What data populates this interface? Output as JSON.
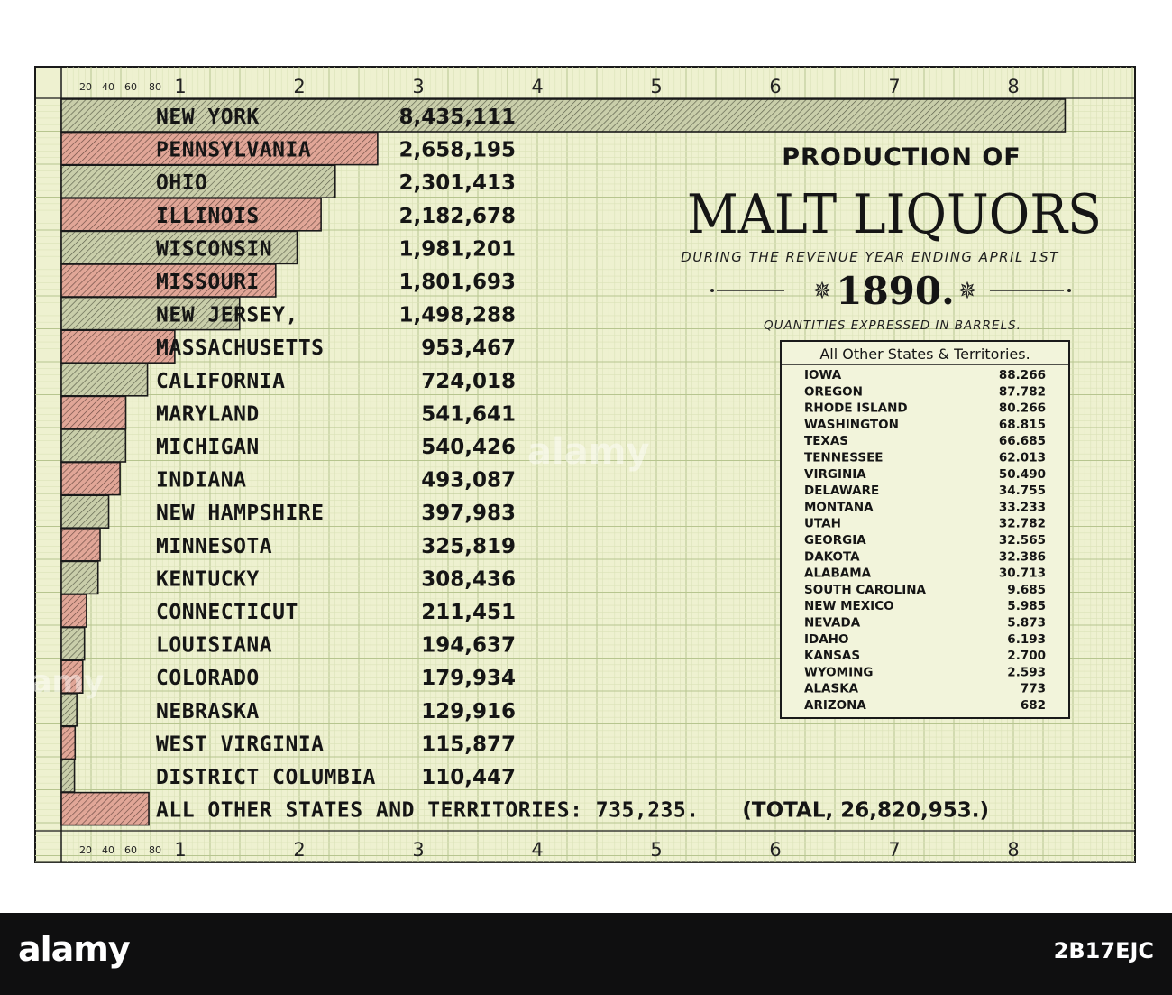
{
  "chart_data": {
    "type": "bar",
    "orientation": "horizontal",
    "title_line1": "PRODUCTION OF",
    "title_line2": "MALT LIQUORS",
    "subtitle": "DURING THE REVENUE YEAR ENDING APRIL 1ST",
    "year": "1890.",
    "units_note": "QUANTITIES EXPRESSED IN BARRELS.",
    "axis_ticks_minor": [
      "20",
      "40",
      "60",
      "80"
    ],
    "axis_ticks_major": [
      "1",
      "2",
      "3",
      "4",
      "5",
      "6",
      "7",
      "8"
    ],
    "xlim": [
      0,
      8.5
    ],
    "unit_divisor": 1000000,
    "grid": true,
    "bar_colors": [
      "#c8cea6",
      "#e0a99a"
    ],
    "categories": [
      "NEW YORK",
      "PENNSYLVANIA",
      "OHIO",
      "ILLINOIS",
      "WISCONSIN",
      "MISSOURI",
      "NEW JERSEY,",
      "MASSACHUSETTS",
      "CALIFORNIA",
      "MARYLAND",
      "MICHIGAN",
      "INDIANA",
      "NEW HAMPSHIRE",
      "MINNESOTA",
      "KENTUCKY",
      "CONNECTICUT",
      "LOUISIANA",
      "COLORADO",
      "NEBRASKA",
      "WEST VIRGINIA",
      "DISTRICT COLUMBIA"
    ],
    "value_labels": [
      "8,435,111",
      "2,658,195",
      "2,301,413",
      "2,182,678",
      "1,981,201",
      "1,801,693",
      "1,498,288",
      "953,467",
      "724,018",
      "541,641",
      "540,426",
      "493,087",
      "397,983",
      "325,819",
      "308,436",
      "211,451",
      "194,637",
      "179,934",
      "129,916",
      "115,877",
      "110,447"
    ],
    "values": [
      8435111,
      2658195,
      2301413,
      2182678,
      1981201,
      1801693,
      1498288,
      953467,
      724018,
      541641,
      540426,
      493087,
      397983,
      325819,
      308436,
      211451,
      194637,
      179934,
      129916,
      115877,
      110447
    ],
    "other_label": "ALL OTHER STATES AND TERRITORIES: 735,235.",
    "other_value": 735235,
    "total_label": "(TOTAL, 26,820,953.)",
    "inset_table": {
      "heading": "All Other States & Territories.",
      "rows": [
        {
          "state": "IOWA",
          "value": "88.266"
        },
        {
          "state": "OREGON",
          "value": "87.782"
        },
        {
          "state": "RHODE ISLAND",
          "value": "80.266"
        },
        {
          "state": "WASHINGTON",
          "value": "68.815"
        },
        {
          "state": "TEXAS",
          "value": "66.685"
        },
        {
          "state": "TENNESSEE",
          "value": "62.013"
        },
        {
          "state": "VIRGINIA",
          "value": "50.490"
        },
        {
          "state": "DELAWARE",
          "value": "34.755"
        },
        {
          "state": "MONTANA",
          "value": "33.233"
        },
        {
          "state": "UTAH",
          "value": "32.782"
        },
        {
          "state": "GEORGIA",
          "value": "32.565"
        },
        {
          "state": "DAKOTA",
          "value": "32.386"
        },
        {
          "state": "ALABAMA",
          "value": "30.713"
        },
        {
          "state": "SOUTH CAROLINA",
          "value": "9.685"
        },
        {
          "state": "NEW MEXICO",
          "value": "5.985"
        },
        {
          "state": "NEVADA",
          "value": "5.873"
        },
        {
          "state": "IDAHO",
          "value": "6.193"
        },
        {
          "state": "KANSAS",
          "value": "2.700"
        },
        {
          "state": "WYOMING",
          "value": "2.593"
        },
        {
          "state": "ALASKA",
          "value": "773"
        },
        {
          "state": "ARIZONA",
          "value": "682"
        }
      ]
    }
  },
  "watermark": {
    "logo": "alamy",
    "mid_text": "alamy",
    "side_text": "alamy",
    "image_id": "2B17EJC"
  }
}
